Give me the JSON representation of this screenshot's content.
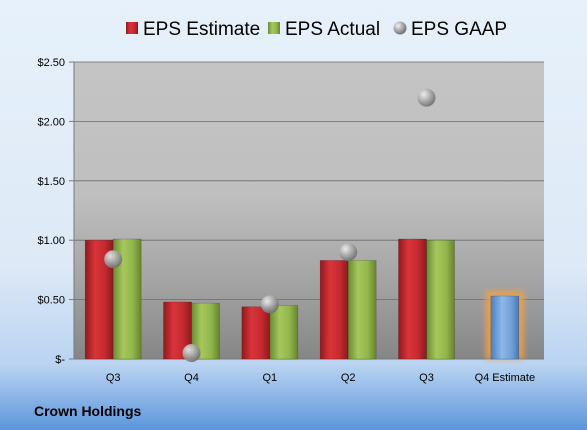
{
  "chart_data": {
    "type": "bar",
    "title": "",
    "xlabel": "",
    "ylabel": "",
    "categories": [
      "Q3",
      "Q4",
      "Q1",
      "Q2",
      "Q3",
      "Q4 Estimate"
    ],
    "series": [
      {
        "name": "EPS Estimate",
        "values": [
          1.0,
          0.48,
          0.44,
          0.83,
          1.01,
          null
        ],
        "color": "#c0282d"
      },
      {
        "name": "EPS Actual",
        "values": [
          1.01,
          0.47,
          0.45,
          0.83,
          1.0,
          null
        ],
        "color": "#8fb24a"
      },
      {
        "name": "EPS GAAP",
        "type": "scatter",
        "values": [
          0.84,
          0.05,
          0.46,
          0.9,
          2.2,
          null
        ],
        "color": "#9a9a9a"
      },
      {
        "name": "Q4 Estimate",
        "values": [
          null,
          null,
          null,
          null,
          null,
          0.53
        ],
        "color": "#6fa0d8",
        "highlight": "#f5a142"
      }
    ],
    "ylim": [
      0,
      2.5
    ],
    "yticks": [
      {
        "value": 0,
        "label": "$-"
      },
      {
        "value": 0.5,
        "label": "$0.50"
      },
      {
        "value": 1.0,
        "label": "$1.00"
      },
      {
        "value": 1.5,
        "label": "$1.50"
      },
      {
        "value": 2.0,
        "label": "$2.00"
      },
      {
        "value": 2.5,
        "label": "$2.50"
      }
    ],
    "legend": {
      "placement": "top",
      "entries": [
        "EPS Estimate",
        "EPS Actual",
        "EPS GAAP"
      ]
    },
    "grid": true
  },
  "footer": {
    "company": "Crown Holdings"
  }
}
